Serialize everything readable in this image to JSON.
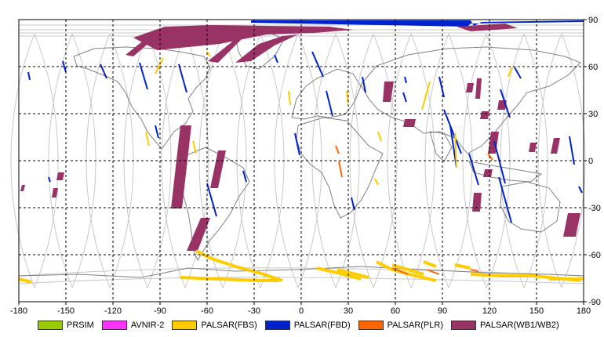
{
  "map": {
    "lon_ticks": [
      "-180",
      "-150",
      "-120",
      "-90",
      "-60",
      "-30",
      "0",
      "30",
      "60",
      "90",
      "120",
      "150",
      "180"
    ],
    "lat_ticks": [
      "90",
      "60",
      "30",
      "0",
      "-30",
      "-60",
      "-90"
    ],
    "lon_range": [
      -180,
      180
    ],
    "lat_range": [
      -90,
      90
    ],
    "grid": true,
    "colors": {
      "orbit": "#c8c8c8",
      "coast": "#808080",
      "grid": "#000000",
      "prsim": "#99cc00",
      "avnir2": "#ff33ff",
      "fbs": "#ffcc00",
      "fbd": "#0022cc",
      "plr": "#ff6600",
      "wb": "#993366"
    }
  },
  "legend": [
    {
      "label": "PRSIM",
      "color": "#99cc00"
    },
    {
      "label": "AVNIR-2",
      "color": "#ff33ff"
    },
    {
      "label": "PALSAR(FBS)",
      "color": "#ffcc00"
    },
    {
      "label": "PALSAR(FBD)",
      "color": "#0022cc"
    },
    {
      "label": "PALSAR(PLR)",
      "color": "#ff6600"
    },
    {
      "label": "PALSAR(WB1/WB2)",
      "color": "#993366"
    }
  ]
}
